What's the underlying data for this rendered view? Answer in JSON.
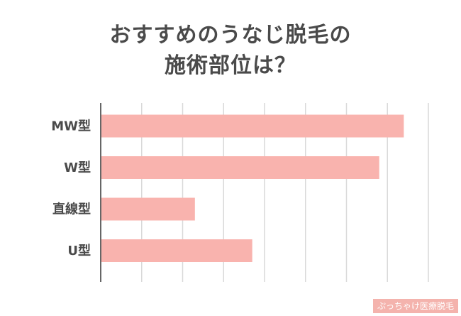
{
  "chart_data": {
    "type": "bar",
    "orientation": "horizontal",
    "title_lines": [
      "おすすめのうなじ脱毛の",
      "施術部位は？"
    ],
    "categories": [
      "MW型",
      "W型",
      "直線型",
      "U型"
    ],
    "values": [
      74,
      68,
      23,
      37
    ],
    "xlim": [
      0,
      80
    ],
    "grid": true,
    "gridlines_count": 8,
    "bar_color": "#f9b3ae",
    "grid_color": "#d9d9d9",
    "axis_color": "#666666"
  },
  "watermark": "ぷっちゃけ医療脱毛"
}
